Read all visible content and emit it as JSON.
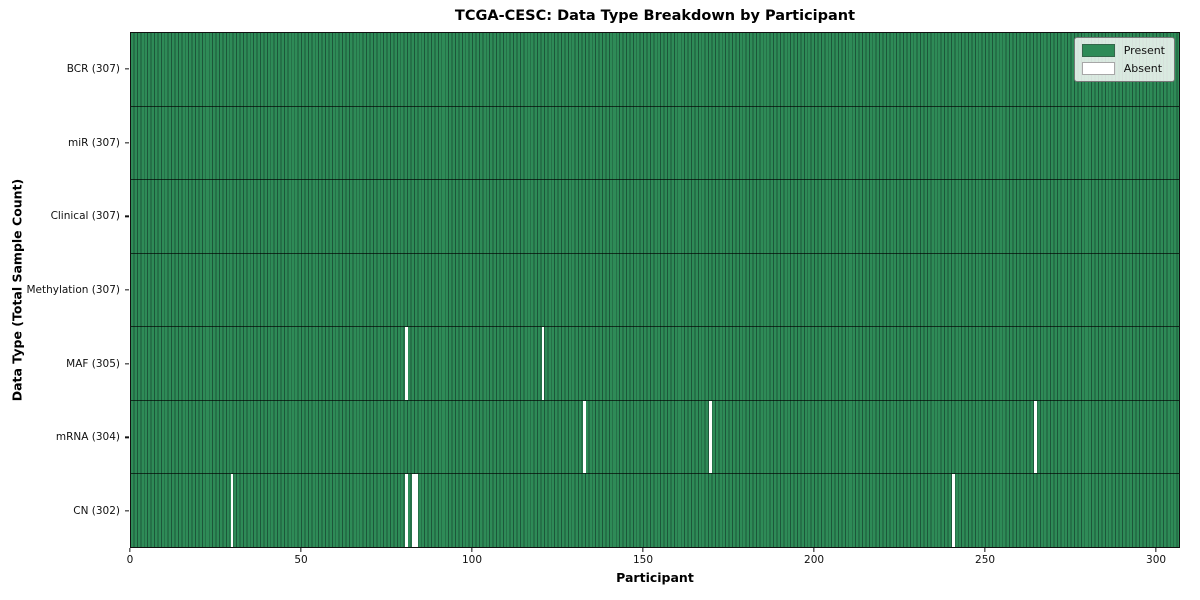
{
  "chart_data": {
    "type": "heatmap",
    "title": "TCGA-CESC: Data Type Breakdown by Participant",
    "xlabel": "Participant",
    "ylabel": "Data Type (Total Sample Count)",
    "x_ticks": [
      0,
      50,
      100,
      150,
      200,
      250,
      300
    ],
    "x_range": [
      0,
      307
    ],
    "n_participants": 307,
    "grid": false,
    "legend_position": "upper-right",
    "legend": [
      {
        "label": "Present",
        "color": "#2e8b57"
      },
      {
        "label": "Absent",
        "color": "#ffffff"
      }
    ],
    "colors": {
      "present_fill": "#2e8b57",
      "cell_edge": "#1c573a",
      "absent_fill": "#ffffff",
      "row_border": "#17321f",
      "figure_background": "#ffffff"
    },
    "rows": [
      {
        "name": "BCR",
        "label": "BCR (307)",
        "present_count": 307,
        "absent_participants": []
      },
      {
        "name": "miR",
        "label": "miR (307)",
        "present_count": 307,
        "absent_participants": []
      },
      {
        "name": "Clinical",
        "label": "Clinical (307)",
        "present_count": 307,
        "absent_participants": []
      },
      {
        "name": "Methylation",
        "label": "Methylation (307)",
        "present_count": 307,
        "absent_participants": []
      },
      {
        "name": "MAF",
        "label": "MAF (305)",
        "present_count": 305,
        "absent_participants": [
          80,
          120
        ]
      },
      {
        "name": "mRNA",
        "label": "mRNA (304)",
        "present_count": 304,
        "absent_participants": [
          132,
          169,
          264
        ]
      },
      {
        "name": "CN",
        "label": "CN (302)",
        "present_count": 302,
        "absent_participants": [
          29,
          80,
          82,
          83,
          240
        ]
      }
    ]
  }
}
